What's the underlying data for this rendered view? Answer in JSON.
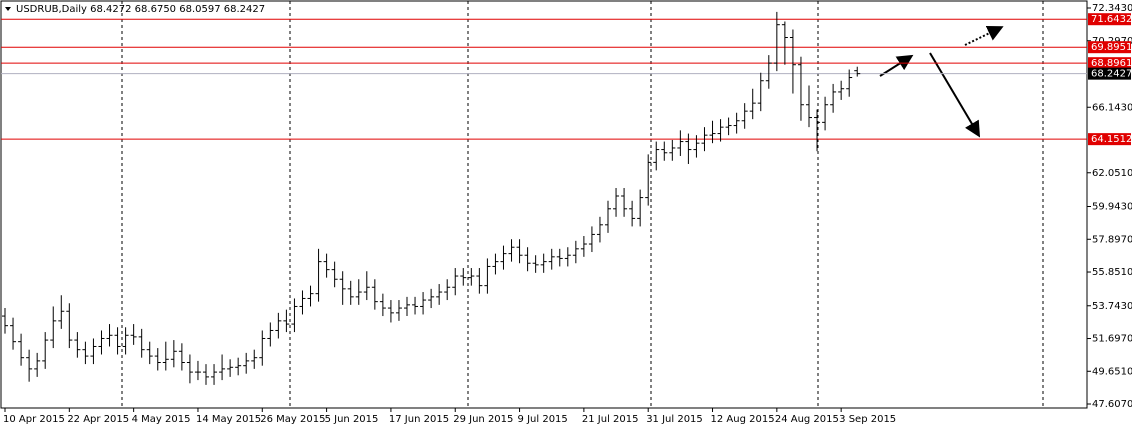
{
  "chart_data": {
    "type": "ohlc",
    "title": "USDRUB,Daily  68.4272 68.6750 68.0597 68.2427",
    "color": "#000000",
    "categories": [
      "10 Apr 2015",
      null,
      null,
      null,
      null,
      null,
      null,
      null,
      "22 Apr 2015",
      null,
      null,
      null,
      null,
      null,
      null,
      null,
      "4 May 2015",
      null,
      null,
      null,
      null,
      null,
      null,
      null,
      "14 May 2015",
      null,
      null,
      null,
      null,
      null,
      null,
      null,
      "26 May 2015",
      null,
      null,
      null,
      null,
      null,
      null,
      null,
      "5 Jun 2015",
      null,
      null,
      null,
      null,
      null,
      null,
      null,
      "17 Jun 2015",
      null,
      null,
      null,
      null,
      null,
      null,
      null,
      "29 Jun 2015",
      null,
      null,
      null,
      null,
      null,
      null,
      null,
      "9 Jul 2015",
      null,
      null,
      null,
      null,
      null,
      null,
      null,
      "21 Jul 2015",
      null,
      null,
      null,
      null,
      null,
      null,
      null,
      "31 Jul 2015",
      null,
      null,
      null,
      null,
      null,
      null,
      null,
      "12 Aug 2015",
      null,
      null,
      null,
      null,
      null,
      null,
      null,
      "24 Aug 2015",
      null,
      null,
      null,
      null,
      null,
      null,
      null,
      "3 Sep 2015",
      null,
      null
    ],
    "open": [
      53.1,
      52.5,
      51.5,
      50.5,
      49.8,
      50.3,
      51.6,
      52.8,
      53.4,
      51.6,
      51.0,
      50.6,
      51.2,
      51.7,
      51.9,
      51.2,
      51.9,
      51.8,
      51.0,
      50.6,
      50.2,
      50.4,
      50.9,
      50.2,
      49.6,
      49.6,
      49.3,
      49.6,
      49.8,
      49.9,
      50.0,
      50.3,
      50.5,
      51.7,
      52.2,
      52.8,
      52.6,
      53.7,
      54.2,
      54.5,
      56.5,
      56.0,
      55.4,
      54.8,
      54.3,
      54.6,
      54.9,
      54.0,
      53.6,
      53.3,
      53.6,
      53.8,
      53.7,
      54.1,
      54.3,
      54.6,
      54.9,
      55.6,
      55.5,
      55.6,
      55.0,
      56.2,
      56.5,
      57.0,
      57.4,
      56.9,
      56.4,
      56.3,
      56.5,
      56.8,
      56.7,
      56.9,
      57.3,
      57.6,
      58.2,
      58.8,
      59.8,
      60.6,
      59.8,
      59.2,
      60.5,
      62.7,
      63.5,
      63.3,
      63.6,
      64.0,
      63.5,
      63.9,
      64.4,
      64.5,
      64.9,
      65.0,
      65.3,
      65.9,
      66.4,
      67.8,
      68.9,
      71.3,
      70.5,
      68.8,
      66.3,
      65.5,
      65.2,
      66.3,
      67.1,
      67.3,
      68.4272
    ],
    "high": [
      53.6,
      53.0,
      52.0,
      51.0,
      50.8,
      52.1,
      53.7,
      54.4,
      53.9,
      52.1,
      51.5,
      51.7,
      52.2,
      52.6,
      52.4,
      52.4,
      52.6,
      52.3,
      51.5,
      51.1,
      51.5,
      51.6,
      51.4,
      50.7,
      50.3,
      50.1,
      50.1,
      50.7,
      50.4,
      50.5,
      50.8,
      51.0,
      52.2,
      52.7,
      53.3,
      53.5,
      54.2,
      54.7,
      55.0,
      57.3,
      57.0,
      56.5,
      55.9,
      55.3,
      55.4,
      55.9,
      55.4,
      54.5,
      54.1,
      54.1,
      54.3,
      54.3,
      54.6,
      54.8,
      55.1,
      55.4,
      56.1,
      56.1,
      56.1,
      56.1,
      56.7,
      57.0,
      57.5,
      57.9,
      57.9,
      57.4,
      56.9,
      57.0,
      57.3,
      57.3,
      57.4,
      57.8,
      58.1,
      58.7,
      59.3,
      60.3,
      61.1,
      61.1,
      60.3,
      61.0,
      63.2,
      64.0,
      64.0,
      64.1,
      64.7,
      64.5,
      64.4,
      64.9,
      65.3,
      65.4,
      65.5,
      65.8,
      66.4,
      67.3,
      68.3,
      69.4,
      72.1,
      71.5,
      71.0,
      69.3,
      67.5,
      66.0,
      66.8,
      67.6,
      67.8,
      68.5,
      68.675
    ],
    "low": [
      52.0,
      51.0,
      50.0,
      49.0,
      49.3,
      49.8,
      51.1,
      52.3,
      51.1,
      50.5,
      50.1,
      50.1,
      50.7,
      51.2,
      50.7,
      50.7,
      51.3,
      50.5,
      50.1,
      49.7,
      49.7,
      49.9,
      49.7,
      48.9,
      49.1,
      48.8,
      48.8,
      49.1,
      49.3,
      49.4,
      49.5,
      49.8,
      50.0,
      51.2,
      51.7,
      52.1,
      52.1,
      53.2,
      53.7,
      54.0,
      55.5,
      54.9,
      53.8,
      53.8,
      53.8,
      54.1,
      53.5,
      53.1,
      52.7,
      52.8,
      53.1,
      53.2,
      53.2,
      53.6,
      53.8,
      54.1,
      54.4,
      55.0,
      55.0,
      54.5,
      54.5,
      55.7,
      56.0,
      56.5,
      56.4,
      55.9,
      55.8,
      55.8,
      56.0,
      56.2,
      56.2,
      56.4,
      56.8,
      57.1,
      57.7,
      58.3,
      59.3,
      59.3,
      58.7,
      58.7,
      60.0,
      62.2,
      62.8,
      62.8,
      63.1,
      62.6,
      63.0,
      63.4,
      63.9,
      64.0,
      64.4,
      64.5,
      64.8,
      65.4,
      65.9,
      67.3,
      68.4,
      68.8,
      67.0,
      65.3,
      64.9,
      63.4,
      64.7,
      65.8,
      66.6,
      66.8,
      68.0597
    ],
    "close": [
      52.5,
      51.5,
      50.5,
      49.8,
      50.3,
      51.6,
      52.8,
      53.4,
      51.6,
      51.0,
      50.6,
      51.2,
      51.7,
      51.9,
      51.2,
      51.9,
      51.8,
      51.0,
      50.6,
      50.2,
      50.4,
      50.9,
      50.2,
      49.6,
      49.6,
      49.3,
      49.6,
      49.8,
      49.9,
      50.0,
      50.3,
      50.5,
      51.7,
      52.2,
      52.8,
      52.6,
      53.7,
      54.2,
      54.5,
      56.5,
      56.0,
      55.4,
      54.8,
      54.3,
      54.6,
      54.9,
      54.0,
      53.6,
      53.3,
      53.6,
      53.8,
      53.7,
      54.1,
      54.3,
      54.6,
      54.9,
      55.6,
      55.5,
      55.6,
      55.0,
      56.2,
      56.5,
      57.0,
      57.4,
      56.9,
      56.4,
      56.3,
      56.5,
      56.8,
      56.7,
      56.9,
      57.3,
      57.6,
      58.2,
      58.8,
      59.8,
      60.6,
      59.8,
      59.2,
      60.5,
      62.7,
      63.5,
      63.3,
      63.6,
      64.0,
      63.5,
      63.9,
      64.4,
      64.5,
      64.9,
      65.0,
      65.3,
      65.9,
      66.4,
      67.8,
      68.9,
      71.3,
      70.5,
      68.8,
      66.3,
      65.5,
      65.2,
      66.3,
      67.1,
      67.3,
      68.0,
      68.2427
    ],
    "ylim": [
      47.607,
      72.343
    ],
    "yticks": [
      {
        "value": 47.607,
        "label": "47.6070"
      },
      {
        "value": 49.651,
        "label": "49.6510"
      },
      {
        "value": 51.697,
        "label": "51.6970"
      },
      {
        "value": 53.743,
        "label": "53.7430"
      },
      {
        "value": 55.851,
        "label": "55.8510"
      },
      {
        "value": 57.897,
        "label": "57.8970"
      },
      {
        "value": 59.943,
        "label": "59.9430"
      },
      {
        "value": 62.051,
        "label": "62.0510"
      },
      {
        "value": 66.143,
        "label": "66.1430"
      },
      {
        "value": 70.297,
        "label": "70.2970"
      },
      {
        "value": 72.343,
        "label": "72.3430"
      }
    ],
    "levels": [
      {
        "value": 71.6432,
        "label": "71.6432",
        "color": "#e00000"
      },
      {
        "value": 69.8951,
        "label": "69.8951",
        "color": "#e00000"
      },
      {
        "value": 68.8961,
        "label": "68.8961",
        "color": "#e00000"
      },
      {
        "value": 64.1512,
        "label": "64.1512",
        "color": "#e00000"
      },
      {
        "value": 68.2427,
        "label": "68.2427",
        "color": "#000000"
      }
    ]
  }
}
